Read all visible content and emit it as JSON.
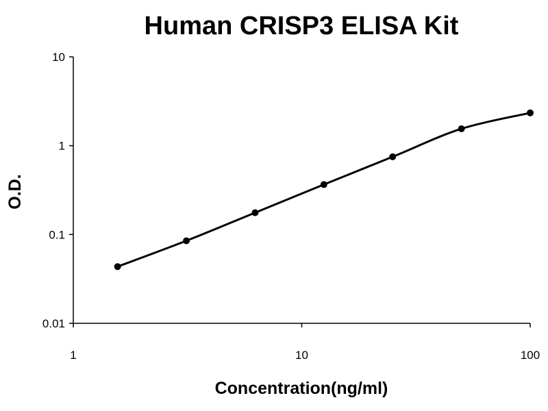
{
  "chart_data": {
    "type": "line",
    "title": "Human CRISP3 ELISA Kit",
    "x_label": "Concentration(ng/ml)",
    "y_label": "O.D.",
    "x": [
      1.5625,
      3.125,
      6.25,
      12.5,
      25,
      50,
      100
    ],
    "values": [
      0.0435,
      0.085,
      0.176,
      0.365,
      0.75,
      1.55,
      2.34
    ],
    "color": "#000000",
    "xscale": "log",
    "yscale": "log",
    "xlim": [
      1,
      100
    ],
    "ylim": [
      0.01,
      10
    ],
    "xticks": [
      1,
      10,
      100
    ],
    "yticks": [
      0.01,
      0.1,
      1,
      10
    ],
    "grid": false
  }
}
